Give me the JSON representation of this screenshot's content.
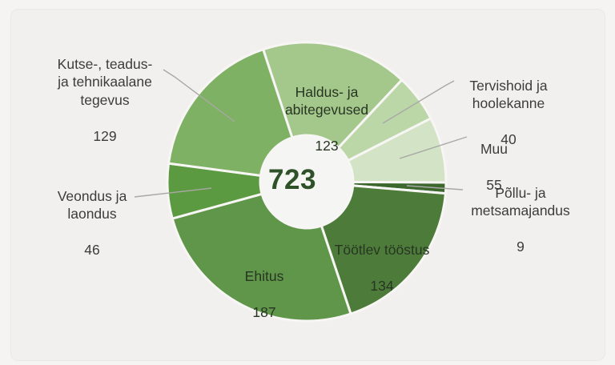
{
  "page": {
    "background_color": "#f5f4f2",
    "card_color": "#f1f0ee"
  },
  "chart_data": {
    "type": "pie",
    "subtype": "donut",
    "title": "",
    "center_total": "723",
    "total": 723,
    "legend_position": "none",
    "colors": {
      "center_total_text": "#2f5129",
      "outside_label_text": "#3c3c3c",
      "inside_label_text": "#273522",
      "leader_line": "#a8a8a6",
      "segment_gap": "#f7f6f4",
      "hole_fill": "#f5f5f3"
    },
    "segments": [
      {
        "slug": "haldus",
        "label": "Haldus- ja abitegevused",
        "display": "Haldus- ja\nabitegevused",
        "value": 123,
        "color": "#a4c78c",
        "label_placement": "inside"
      },
      {
        "slug": "tervishoid",
        "label": "Tervishoid ja hoolekanne",
        "display": "Tervishoid ja\nhoolekanne",
        "value": 40,
        "color": "#bcd7a7",
        "label_placement": "outside"
      },
      {
        "slug": "muu",
        "label": "Muu",
        "display": "Muu",
        "value": 55,
        "color": "#d3e3c5",
        "label_placement": "outside"
      },
      {
        "slug": "pollu",
        "label": "Põllu- ja metsamajandus",
        "display": "Põllu- ja\nmetsamajandus",
        "value": 9,
        "color": "#3c682d",
        "label_placement": "outside"
      },
      {
        "slug": "tootlev",
        "label": "Töötlev tööstus",
        "display": "Töötlev tööstus",
        "value": 134,
        "color": "#4d7c3a",
        "label_placement": "inside"
      },
      {
        "slug": "ehitus",
        "label": "Ehitus",
        "display": "Ehitus",
        "value": 187,
        "color": "#60964a",
        "label_placement": "inside"
      },
      {
        "slug": "veondus",
        "label": "Veondus ja laondus",
        "display": "Veondus ja\nlaondus",
        "value": 46,
        "color": "#5c9a41",
        "label_placement": "outside"
      },
      {
        "slug": "kutse",
        "label": "Kutse-, teadus- ja tehnikaalane tegevus",
        "display": "Kutse-, teadus-\nja tehnikaalane\ntegevus",
        "value": 129,
        "color": "#7eb163",
        "label_placement": "outside"
      }
    ]
  }
}
